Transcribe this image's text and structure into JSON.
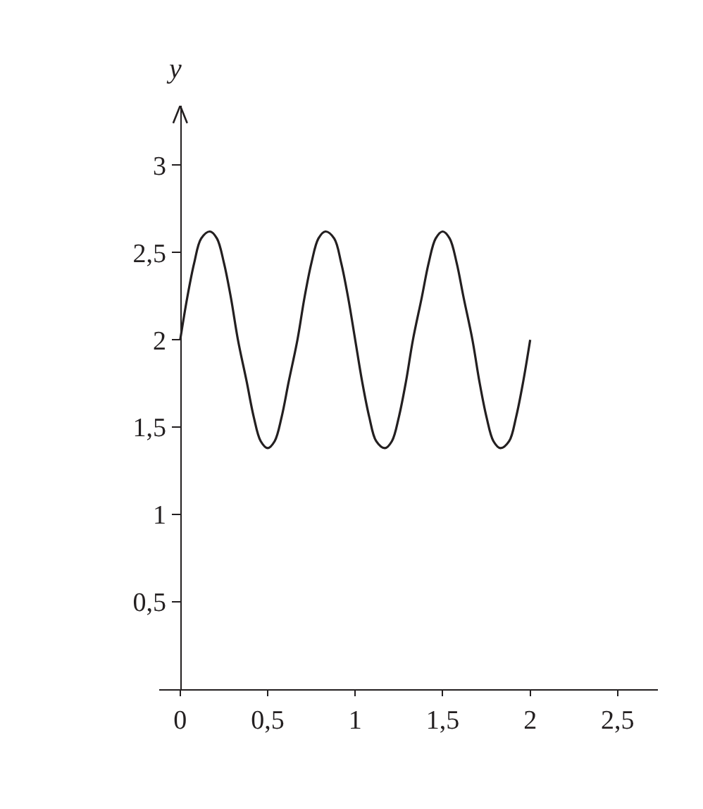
{
  "chart_data": {
    "type": "line",
    "ylabel": "y",
    "x": [
      0,
      0.04,
      0.08,
      0.12,
      0.17,
      0.21,
      0.25,
      0.29,
      0.33,
      0.38,
      0.42,
      0.46,
      0.5,
      0.54,
      0.58,
      0.62,
      0.67,
      0.71,
      0.75,
      0.79,
      0.83,
      0.88,
      0.92,
      0.96,
      1,
      1.04,
      1.08,
      1.12,
      1.17,
      1.21,
      1.25,
      1.29,
      1.33,
      1.38,
      1.42,
      1.46,
      1.5,
      1.54,
      1.58,
      1.62,
      1.67,
      1.71,
      1.75,
      1.79,
      1.83,
      1.88,
      1.92,
      1.96,
      2
    ],
    "series": [
      {
        "color": "#231f20",
        "values": [
          2,
          2.24,
          2.44,
          2.58,
          2.62,
          2.58,
          2.44,
          2.24,
          2,
          1.76,
          1.56,
          1.42,
          1.38,
          1.42,
          1.56,
          1.76,
          2,
          2.24,
          2.44,
          2.58,
          2.62,
          2.58,
          2.44,
          2.24,
          2,
          1.76,
          1.56,
          1.42,
          1.38,
          1.42,
          1.56,
          1.76,
          2,
          2.24,
          2.44,
          2.58,
          2.62,
          2.58,
          2.44,
          2.24,
          2,
          1.76,
          1.56,
          1.42,
          1.38,
          1.42,
          1.56,
          1.76,
          2
        ]
      }
    ],
    "xlim": [
      -0.12,
      2.73
    ],
    "ylim": [
      0,
      3.34
    ],
    "xticks": [
      0,
      {
        "value": 0.5,
        "label": "0,5"
      },
      1,
      {
        "value": 1.5,
        "label": "1,5"
      },
      2,
      {
        "value": 2.5,
        "label": "2,5"
      }
    ],
    "yticks": [
      {
        "value": 0.5,
        "label": "0,5"
      },
      1,
      {
        "value": 1.5,
        "label": "1,5"
      },
      2,
      {
        "value": 2.5,
        "label": "2,5"
      },
      3
    ],
    "grid": false,
    "legend": false,
    "marker": "none",
    "line_style": "solid"
  }
}
